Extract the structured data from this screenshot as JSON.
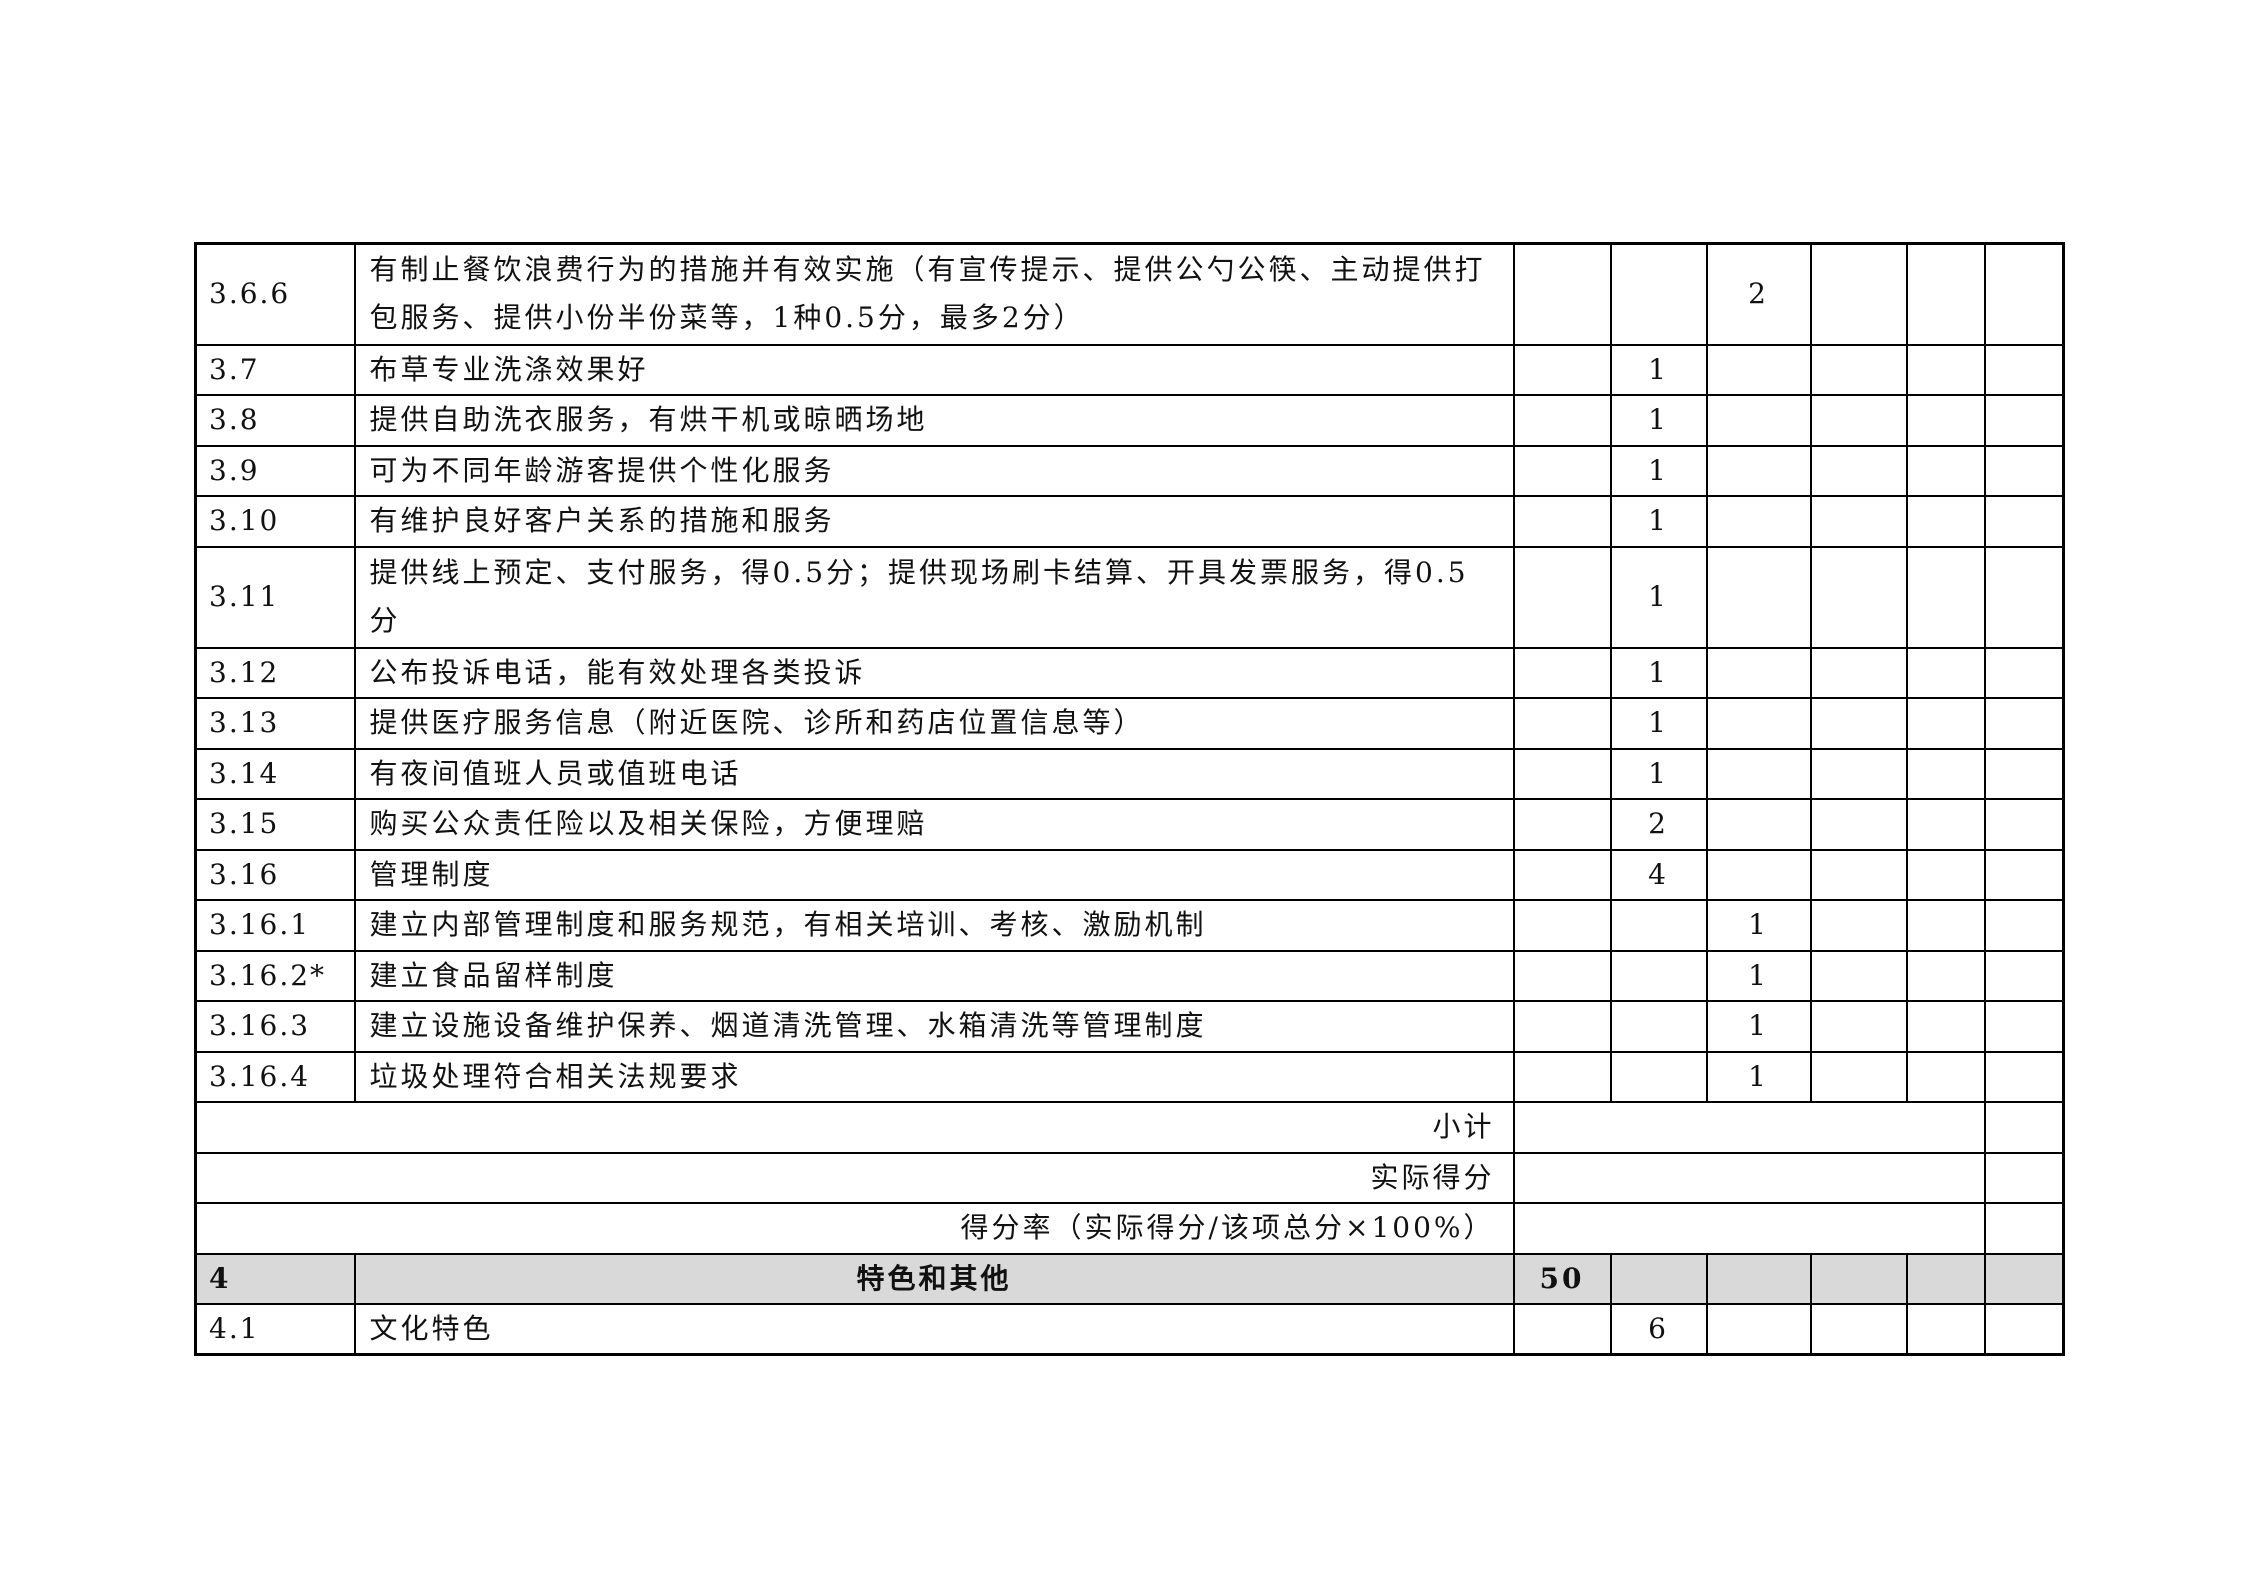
{
  "rows": [
    {
      "code": "3.6.6",
      "text": "有制止餐饮浪费行为的措施并有效实施（有宣传提示、提供公勺公筷、主动提供打包服务、提供小份半份菜等，1种0.5分，最多2分）",
      "c2": "",
      "c3": "",
      "c4": "2",
      "tall": true
    },
    {
      "code": "3.7",
      "text": "布草专业洗涤效果好",
      "c2": "",
      "c3": "1",
      "c4": ""
    },
    {
      "code": "3.8",
      "text": "提供自助洗衣服务，有烘干机或晾晒场地",
      "c2": "",
      "c3": "1",
      "c4": ""
    },
    {
      "code": "3.9",
      "text": "可为不同年龄游客提供个性化服务",
      "c2": "",
      "c3": "1",
      "c4": ""
    },
    {
      "code": "3.10",
      "text": "有维护良好客户关系的措施和服务",
      "c2": "",
      "c3": "1",
      "c4": ""
    },
    {
      "code": "3.11",
      "text": "提供线上预定、支付服务，得0.5分；提供现场刷卡结算、开具发票服务，得0.5分",
      "c2": "",
      "c3": "1",
      "c4": "",
      "tall": true
    },
    {
      "code": "3.12",
      "text": "公布投诉电话，能有效处理各类投诉",
      "c2": "",
      "c3": "1",
      "c4": ""
    },
    {
      "code": "3.13",
      "text": "提供医疗服务信息（附近医院、诊所和药店位置信息等）",
      "c2": "",
      "c3": "1",
      "c4": ""
    },
    {
      "code": "3.14",
      "text": "有夜间值班人员或值班电话",
      "c2": "",
      "c3": "1",
      "c4": ""
    },
    {
      "code": "3.15",
      "text": "购买公众责任险以及相关保险，方便理赔",
      "c2": "",
      "c3": "2",
      "c4": ""
    },
    {
      "code": "3.16",
      "text": "管理制度",
      "c2": "",
      "c3": "4",
      "c4": ""
    },
    {
      "code": "3.16.1",
      "text": "建立内部管理制度和服务规范，有相关培训、考核、激励机制",
      "c2": "",
      "c3": "",
      "c4": "1"
    },
    {
      "code": "3.16.2*",
      "text": "建立食品留样制度",
      "c2": "",
      "c3": "",
      "c4": "1"
    },
    {
      "code": "3.16.3",
      "text": "建立设施设备维护保养、烟道清洗管理、水箱清洗等管理制度",
      "c2": "",
      "c3": "",
      "c4": "1"
    },
    {
      "code": "3.16.4",
      "text": "垃圾处理符合相关法规要求",
      "c2": "",
      "c3": "",
      "c4": "1"
    }
  ],
  "summary": [
    "小计",
    "实际得分",
    "得分率（实际得分/该项总分×100%）"
  ],
  "section": {
    "code": "4",
    "title": "特色和其他",
    "c2": "50",
    "c3": "",
    "c4": ""
  },
  "after_rows": [
    {
      "code": "4.1",
      "text": "文化特色",
      "c2": "",
      "c3": "6",
      "c4": ""
    }
  ],
  "colors": {
    "section_bg": "#d9d9d9"
  }
}
